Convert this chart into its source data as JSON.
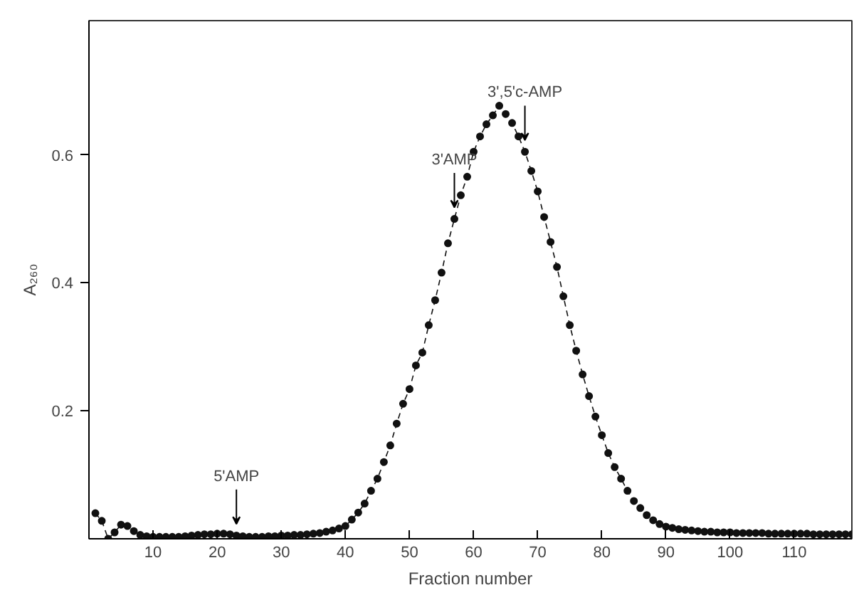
{
  "chart_data": {
    "type": "line",
    "xlabel": "Fraction number",
    "ylabel": "A₂₆₀",
    "x": [
      1,
      2,
      3,
      4,
      5,
      6,
      7,
      8,
      9,
      10,
      11,
      12,
      13,
      14,
      15,
      16,
      17,
      18,
      19,
      20,
      21,
      22,
      23,
      24,
      25,
      26,
      27,
      28,
      29,
      30,
      31,
      32,
      33,
      34,
      35,
      36,
      37,
      38,
      39,
      40,
      41,
      42,
      43,
      44,
      45,
      46,
      47,
      48,
      49,
      50,
      51,
      52,
      53,
      54,
      55,
      56,
      57,
      58,
      59,
      60,
      61,
      62,
      63,
      64,
      65,
      66,
      67,
      68,
      69,
      70,
      71,
      72,
      73,
      74,
      75,
      76,
      77,
      78,
      79,
      80,
      81,
      82,
      83,
      84,
      85,
      86,
      87,
      88,
      89,
      90,
      91,
      92,
      93,
      94,
      95,
      96,
      97,
      98,
      99,
      100,
      101,
      102,
      103,
      104,
      105,
      106,
      107,
      108,
      109,
      110,
      111,
      112,
      113,
      114,
      115,
      116,
      117,
      118,
      119
    ],
    "series": [
      {
        "color": "#111111",
        "values": [
          0.04,
          0.028,
          0.0,
          0.01,
          0.022,
          0.02,
          0.012,
          0.006,
          0.004,
          0.003,
          0.003,
          0.003,
          0.003,
          0.003,
          0.004,
          0.005,
          0.006,
          0.007,
          0.007,
          0.008,
          0.008,
          0.007,
          0.005,
          0.004,
          0.003,
          0.003,
          0.003,
          0.004,
          0.004,
          0.005,
          0.005,
          0.006,
          0.006,
          0.007,
          0.008,
          0.009,
          0.011,
          0.013,
          0.016,
          0.02,
          0.03,
          0.041,
          0.055,
          0.075,
          0.094,
          0.12,
          0.146,
          0.18,
          0.211,
          0.234,
          0.271,
          0.291,
          0.334,
          0.373,
          0.416,
          0.462,
          0.5,
          0.537,
          0.566,
          0.605,
          0.629,
          0.648,
          0.662,
          0.677,
          0.664,
          0.65,
          0.629,
          0.605,
          0.575,
          0.543,
          0.503,
          0.464,
          0.425,
          0.379,
          0.334,
          0.294,
          0.257,
          0.223,
          0.191,
          0.162,
          0.134,
          0.112,
          0.094,
          0.075,
          0.059,
          0.048,
          0.037,
          0.029,
          0.023,
          0.019,
          0.017,
          0.015,
          0.014,
          0.013,
          0.012,
          0.011,
          0.011,
          0.01,
          0.01,
          0.01,
          0.009,
          0.009,
          0.009,
          0.009,
          0.009,
          0.008,
          0.008,
          0.008,
          0.008,
          0.008,
          0.008,
          0.008,
          0.007,
          0.007,
          0.007,
          0.007,
          0.007,
          0.007,
          0.007
        ]
      }
    ],
    "xlim": [
      0,
      119
    ],
    "ylim": [
      0,
      0.81
    ],
    "xticks": [
      10,
      20,
      30,
      40,
      50,
      60,
      70,
      80,
      90,
      100,
      110
    ],
    "yticks": [
      0.2,
      0.4,
      0.6
    ],
    "grid": false,
    "marker": "circle",
    "line_style": "dashed",
    "annotations": [
      {
        "text": "5'AMP",
        "x": 23,
        "y": 0.005
      },
      {
        "text": "3'AMP",
        "x": 57,
        "y": 0.5
      },
      {
        "text": "3',5'c-AMP",
        "x": 68,
        "y": 0.605
      }
    ]
  }
}
